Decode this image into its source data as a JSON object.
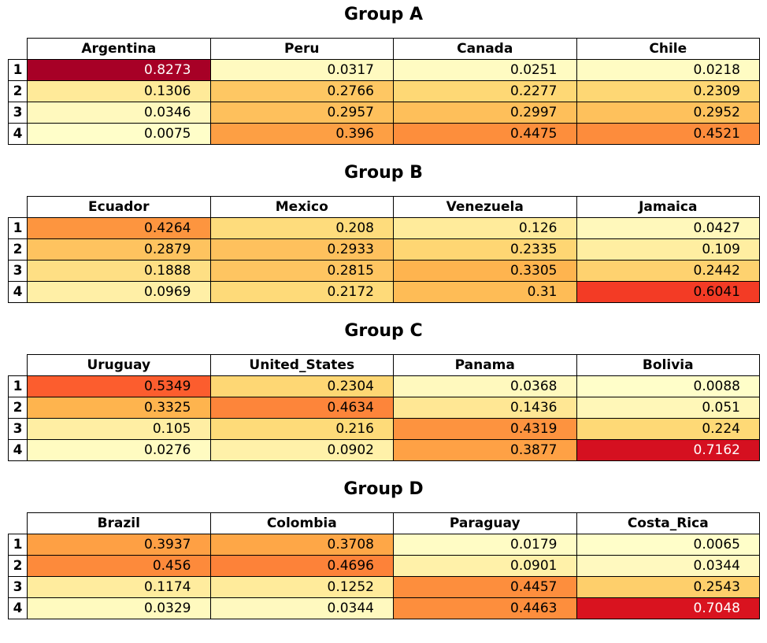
{
  "chart_data": {
    "type": "table",
    "colormap": "YlOrRd",
    "value_range": [
      0,
      0.9
    ],
    "groups": [
      {
        "title": "Group A",
        "columns": [
          "Argentina",
          "Peru",
          "Canada",
          "Chile"
        ],
        "rows": [
          "1",
          "2",
          "3",
          "4"
        ],
        "cells": [
          [
            "0.8273",
            "0.0317",
            "0.0251",
            "0.0218"
          ],
          [
            "0.1306",
            "0.2766",
            "0.2277",
            "0.2309"
          ],
          [
            "0.0346",
            "0.2957",
            "0.2997",
            "0.2952"
          ],
          [
            "0.0075",
            "0.396",
            "0.4475",
            "0.4521"
          ]
        ]
      },
      {
        "title": "Group B",
        "columns": [
          "Ecuador",
          "Mexico",
          "Venezuela",
          "Jamaica"
        ],
        "rows": [
          "1",
          "2",
          "3",
          "4"
        ],
        "cells": [
          [
            "0.4264",
            "0.208",
            "0.126",
            "0.0427"
          ],
          [
            "0.2879",
            "0.2933",
            "0.2335",
            "0.109"
          ],
          [
            "0.1888",
            "0.2815",
            "0.3305",
            "0.2442"
          ],
          [
            "0.0969",
            "0.2172",
            "0.31",
            "0.6041"
          ]
        ]
      },
      {
        "title": "Group C",
        "columns": [
          "Uruguay",
          "United_States",
          "Panama",
          "Bolivia"
        ],
        "rows": [
          "1",
          "2",
          "3",
          "4"
        ],
        "cells": [
          [
            "0.5349",
            "0.2304",
            "0.0368",
            "0.0088"
          ],
          [
            "0.3325",
            "0.4634",
            "0.1436",
            "0.051"
          ],
          [
            "0.105",
            "0.216",
            "0.4319",
            "0.224"
          ],
          [
            "0.0276",
            "0.0902",
            "0.3877",
            "0.7162"
          ]
        ]
      },
      {
        "title": "Group D",
        "columns": [
          "Brazil",
          "Colombia",
          "Paraguay",
          "Costa_Rica"
        ],
        "rows": [
          "1",
          "2",
          "3",
          "4"
        ],
        "cells": [
          [
            "0.3937",
            "0.3708",
            "0.0179",
            "0.0065"
          ],
          [
            "0.456",
            "0.4696",
            "0.0901",
            "0.0344"
          ],
          [
            "0.1174",
            "0.1252",
            "0.4457",
            "0.2543"
          ],
          [
            "0.0329",
            "0.0344",
            "0.4463",
            "0.7048"
          ]
        ]
      }
    ]
  }
}
